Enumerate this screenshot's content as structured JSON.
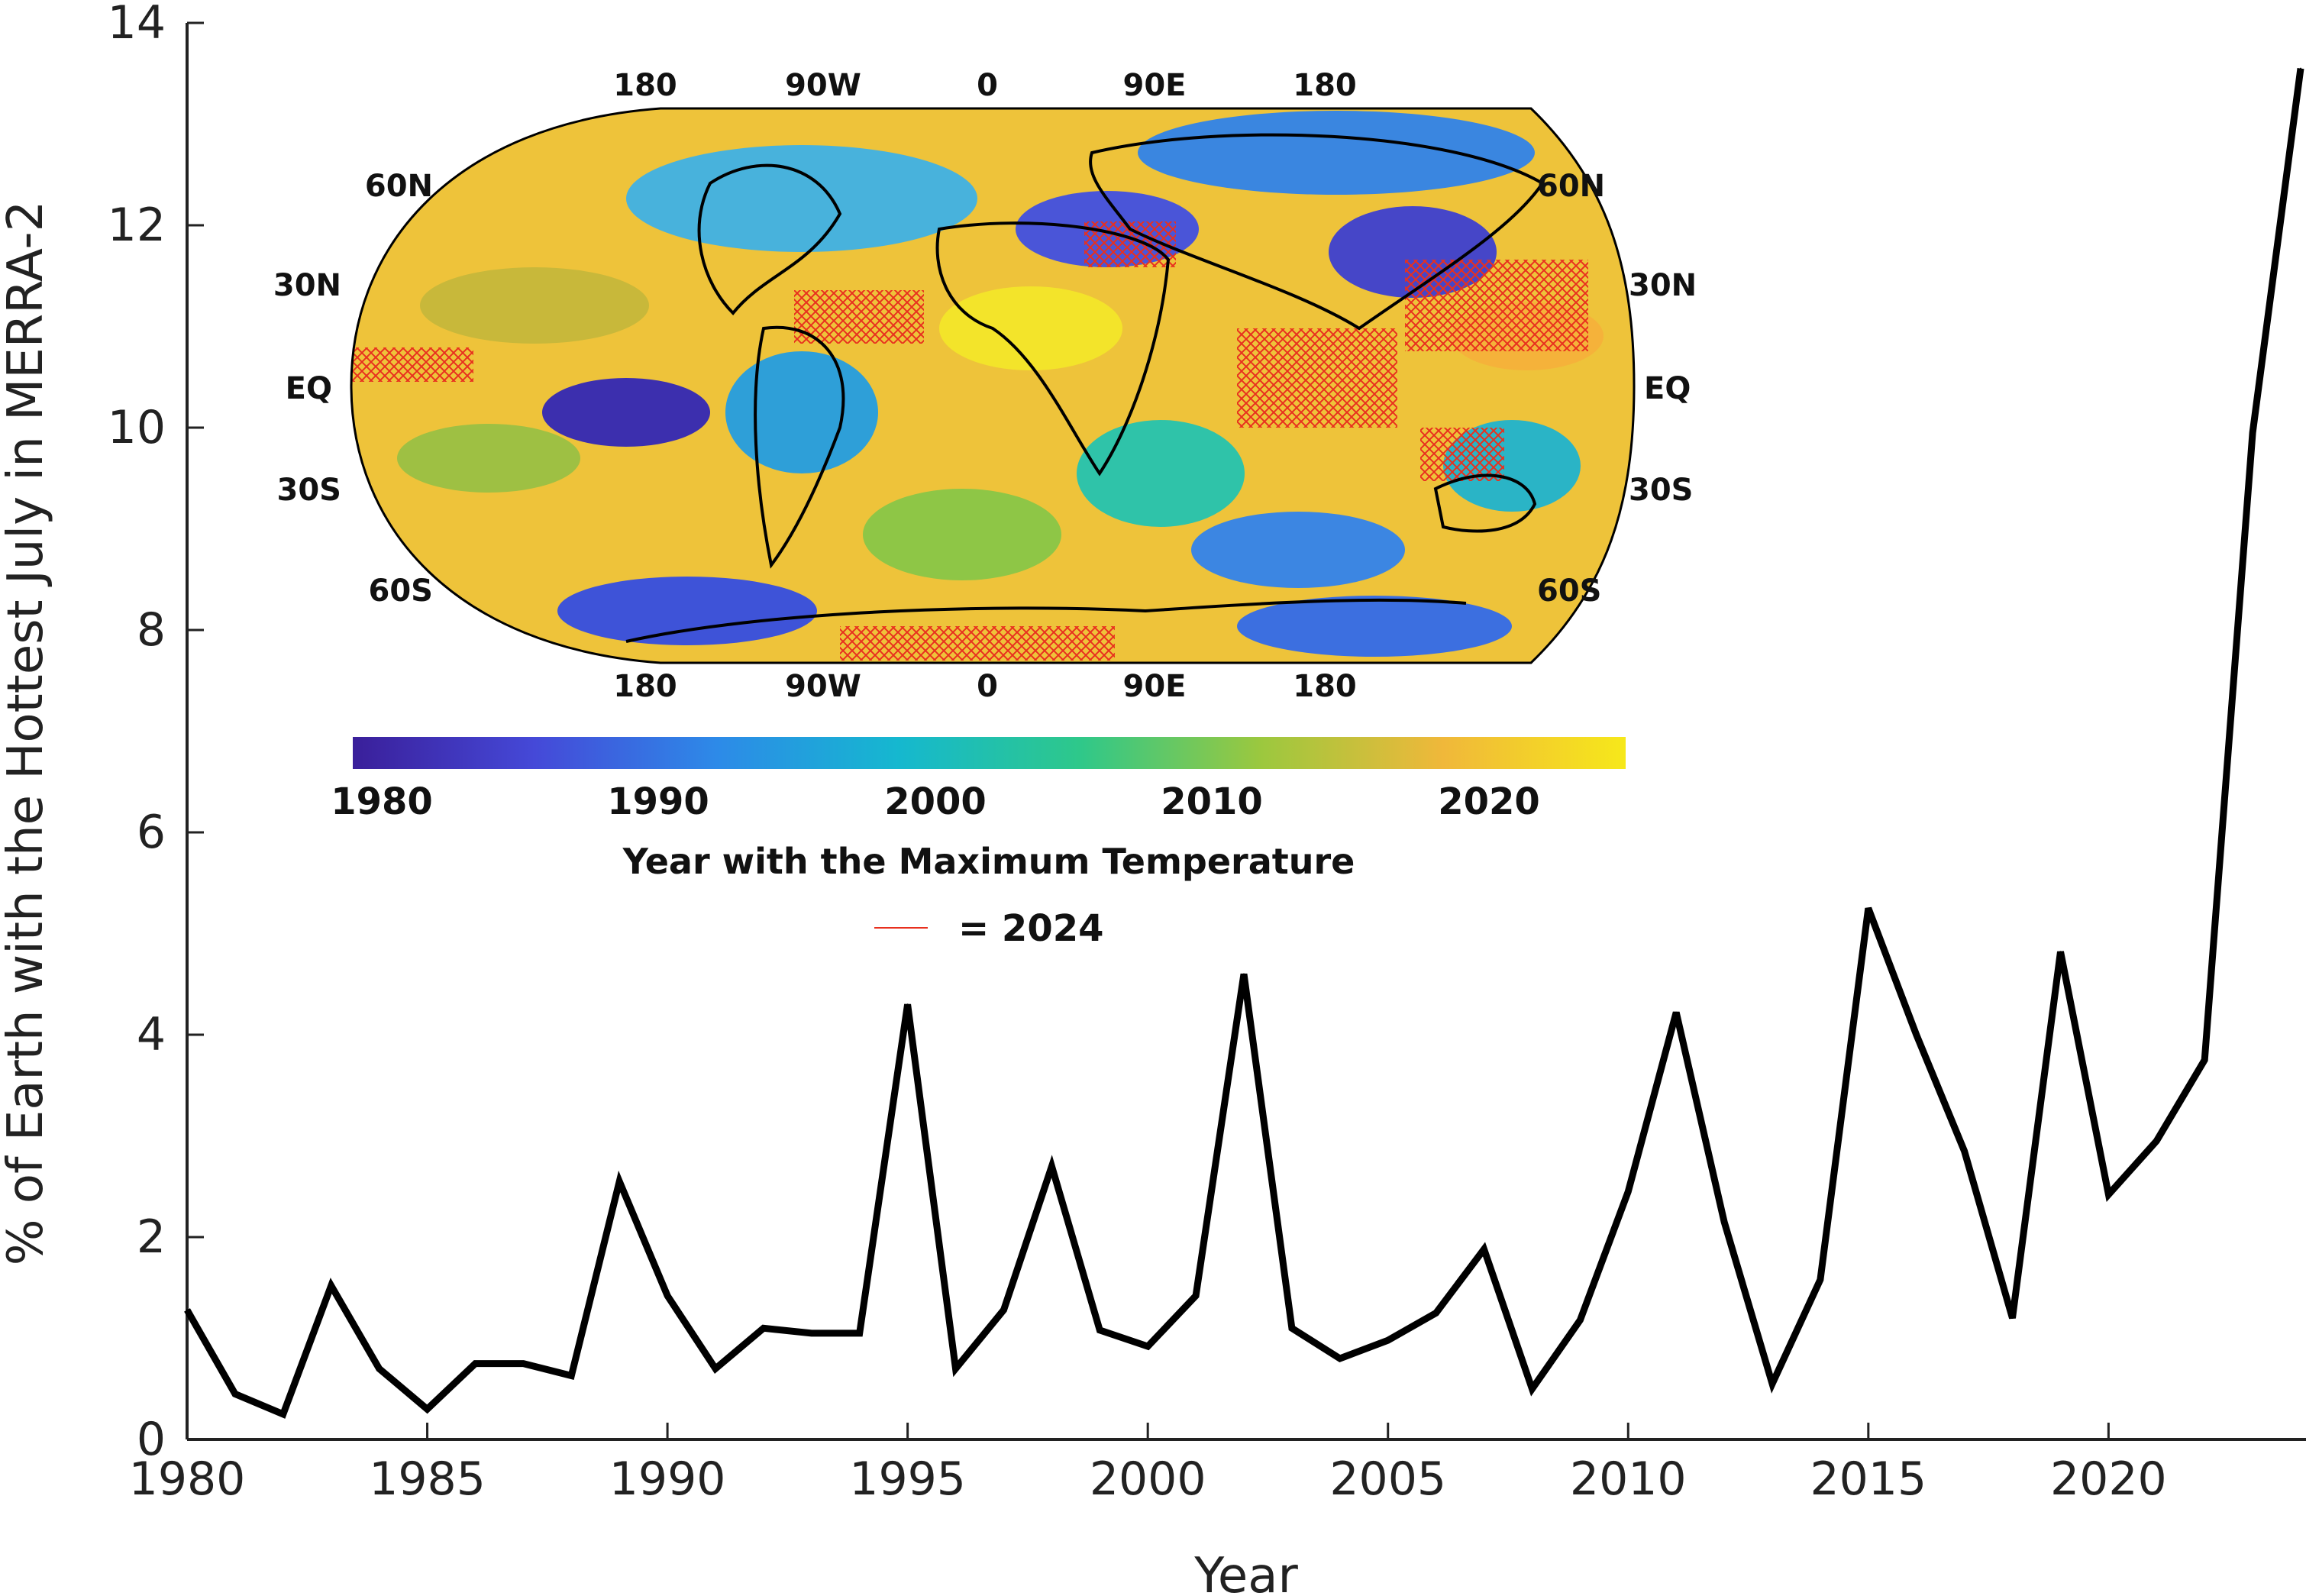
{
  "chart_data": {
    "type": "line",
    "xlabel": "Year",
    "ylabel": "% of Earth with the Hottest July in MERRA-2",
    "xlim": [
      1980,
      2024
    ],
    "ylim": [
      0,
      14
    ],
    "xticks": [
      "1980",
      "1985",
      "1990",
      "1995",
      "2000",
      "2005",
      "2010",
      "2015",
      "2020"
    ],
    "yticks": [
      "0",
      "2",
      "4",
      "6",
      "8",
      "10",
      "12",
      "14"
    ],
    "grid": false,
    "series": [
      {
        "x": [
          1980,
          1981,
          1982,
          1983,
          1984,
          1985,
          1986,
          1987,
          1988,
          1989,
          1990,
          1991,
          1992,
          1993,
          1994,
          1995,
          1996,
          1997,
          1998,
          1999,
          2000,
          2001,
          2002,
          2003,
          2004,
          2005,
          2006,
          2007,
          2008,
          2009,
          2010,
          2011,
          2012,
          2013,
          2014,
          2015,
          2016,
          2017,
          2018,
          2019,
          2020,
          2021,
          2022,
          2023,
          2024
        ],
        "values": [
          1.28,
          0.45,
          0.25,
          1.52,
          0.7,
          0.3,
          0.75,
          0.75,
          0.63,
          2.55,
          1.42,
          0.7,
          1.1,
          1.05,
          1.05,
          4.3,
          0.7,
          1.28,
          2.7,
          1.08,
          0.92,
          1.42,
          4.6,
          1.1,
          0.8,
          0.98,
          1.25,
          1.88,
          0.5,
          1.18,
          2.45,
          4.22,
          2.15,
          0.55,
          1.58,
          5.25,
          4.0,
          2.85,
          1.2,
          4.82,
          2.42,
          2.95,
          3.75,
          9.95,
          13.55
        ]
      }
    ],
    "line_color": "#000000"
  },
  "inset": {
    "lon_top": [
      "180",
      "90W",
      "0",
      "90E",
      "180"
    ],
    "lon_bottom": [
      "180",
      "90W",
      "0",
      "90E",
      "180"
    ],
    "lat_left": [
      "60N",
      "30N",
      "EQ",
      "30S",
      "60S"
    ],
    "lat_right": [
      "60N",
      "30N",
      "EQ",
      "30S",
      "60S"
    ],
    "colorbar": {
      "ticks": [
        "1980",
        "1990",
        "2000",
        "2010",
        "2020"
      ],
      "title": "Year with the Maximum Temperature",
      "colors": [
        "#3a1f9a",
        "#4549d8",
        "#2d8ae8",
        "#15b8cf",
        "#2ec88a",
        "#9cc83e",
        "#f0b83a",
        "#f6e81a"
      ]
    },
    "legend": {
      "label": "= 2024",
      "color": "#e8301e"
    }
  }
}
